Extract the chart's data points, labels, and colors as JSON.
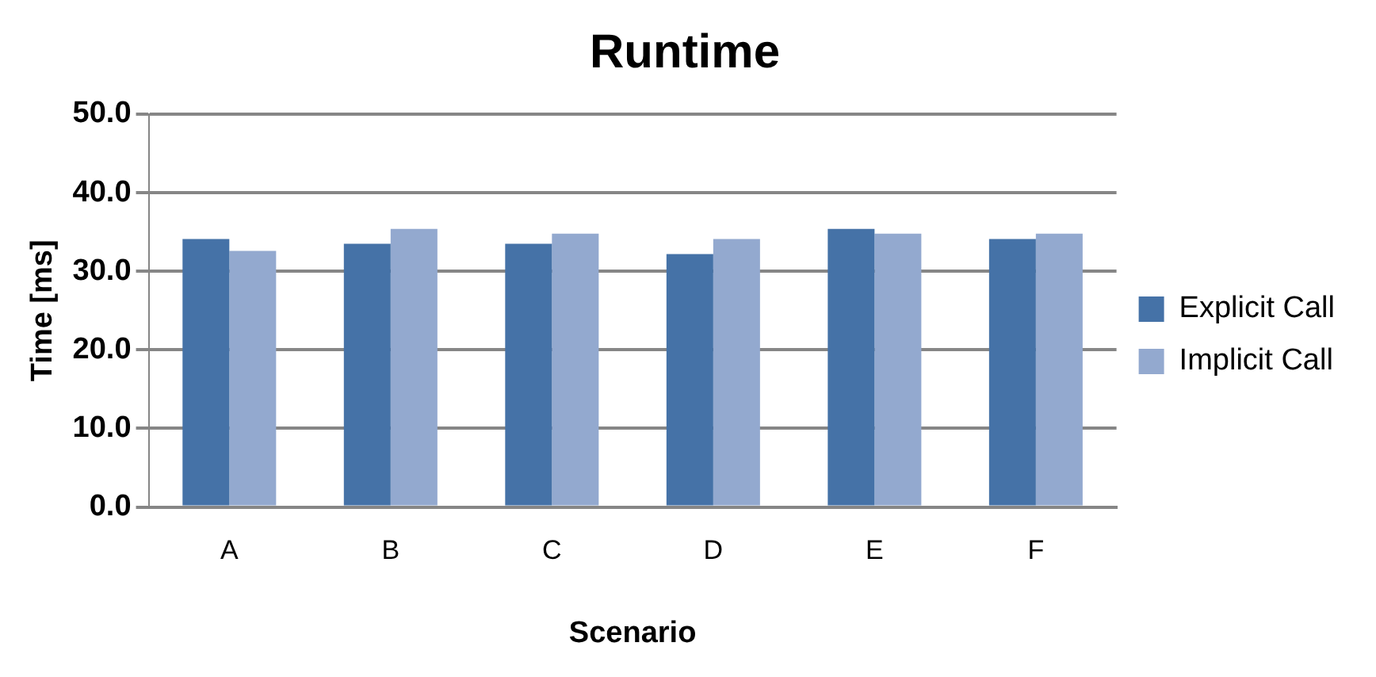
{
  "chart_data": {
    "type": "bar",
    "title": "Runtime",
    "xlabel": "Scenario",
    "ylabel": "Time [ms]",
    "categories": [
      "A",
      "B",
      "C",
      "D",
      "E",
      "F"
    ],
    "series": [
      {
        "name": "Explicit Call",
        "color": "#4572a7",
        "values": [
          34.1,
          33.5,
          33.5,
          32.2,
          35.4,
          34.1
        ]
      },
      {
        "name": "Implicit Call",
        "color": "#93a9cf",
        "values": [
          32.6,
          35.4,
          34.8,
          34.1,
          34.8,
          34.8
        ]
      }
    ],
    "ylim": [
      0,
      50
    ],
    "yticks": [
      {
        "value": 0,
        "label": "0.0"
      },
      {
        "value": 10,
        "label": "10.0"
      },
      {
        "value": 20,
        "label": "20.0"
      },
      {
        "value": 30,
        "label": "30.0"
      },
      {
        "value": 40,
        "label": "40.0"
      },
      {
        "value": 50,
        "label": "50.0"
      }
    ],
    "grid": "y",
    "legend": "right"
  }
}
